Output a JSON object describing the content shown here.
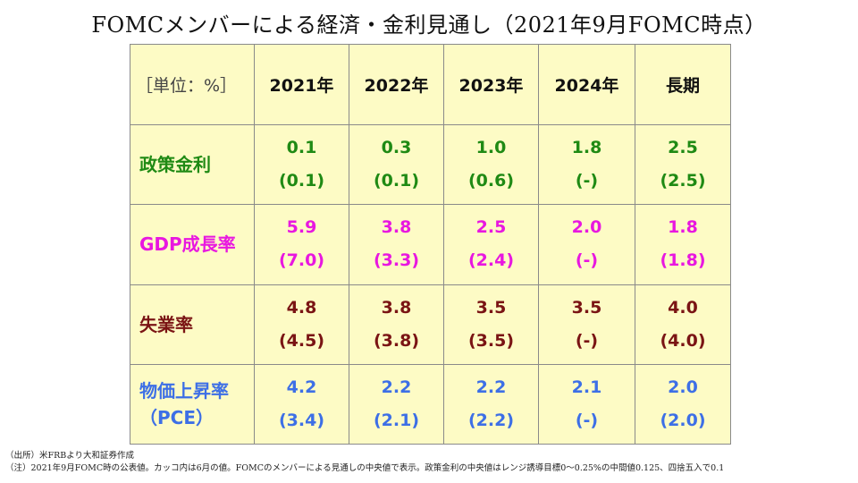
{
  "title": "FOMCメンバーによる経済・金利見通し（2021年9月FOMC時点）",
  "table": {
    "unit_label": "［単位：%］",
    "columns": [
      "2021年",
      "2022年",
      "2023年",
      "2024年",
      "長期"
    ],
    "rows": [
      {
        "label": "政策金利",
        "color": "#1f8a14",
        "cells": [
          {
            "value": "0.1",
            "prev": "(0.1)"
          },
          {
            "value": "0.3",
            "prev": "(0.1)"
          },
          {
            "value": "1.0",
            "prev": "(0.6)"
          },
          {
            "value": "1.8",
            "prev": "(-)"
          },
          {
            "value": "2.5",
            "prev": "(2.5)"
          }
        ]
      },
      {
        "label": "GDP成長率",
        "color": "#e817e0",
        "cells": [
          {
            "value": "5.9",
            "prev": "(7.0)"
          },
          {
            "value": "3.8",
            "prev": "(3.3)"
          },
          {
            "value": "2.5",
            "prev": "(2.4)"
          },
          {
            "value": "2.0",
            "prev": "(-)"
          },
          {
            "value": "1.8",
            "prev": "(1.8)"
          }
        ]
      },
      {
        "label": "失業率",
        "color": "#7a1414",
        "cells": [
          {
            "value": "4.8",
            "prev": "(4.5)"
          },
          {
            "value": "3.8",
            "prev": "(3.8)"
          },
          {
            "value": "3.5",
            "prev": "(3.5)"
          },
          {
            "value": "3.5",
            "prev": "(-)"
          },
          {
            "value": "4.0",
            "prev": "(4.0)"
          }
        ]
      },
      {
        "label": "物価上昇率",
        "label2": "（PCE）",
        "color": "#3d6fe6",
        "cells": [
          {
            "value": "4.2",
            "prev": "(3.4)"
          },
          {
            "value": "2.2",
            "prev": "(2.1)"
          },
          {
            "value": "2.2",
            "prev": "(2.2)"
          },
          {
            "value": "2.1",
            "prev": "(-)"
          },
          {
            "value": "2.0",
            "prev": "(2.0)"
          }
        ]
      }
    ]
  },
  "notes": {
    "source": "（出所）米FRBより大和証券作成",
    "note": "（注）2021年9月FOMC時の公表値。カッコ内は6月の値。FOMCのメンバーによる見通しの中央値で表示。政策金利の中央値はレンジ誘導目標0～0.25%の中間値0.125、四捨五入で0.1"
  }
}
